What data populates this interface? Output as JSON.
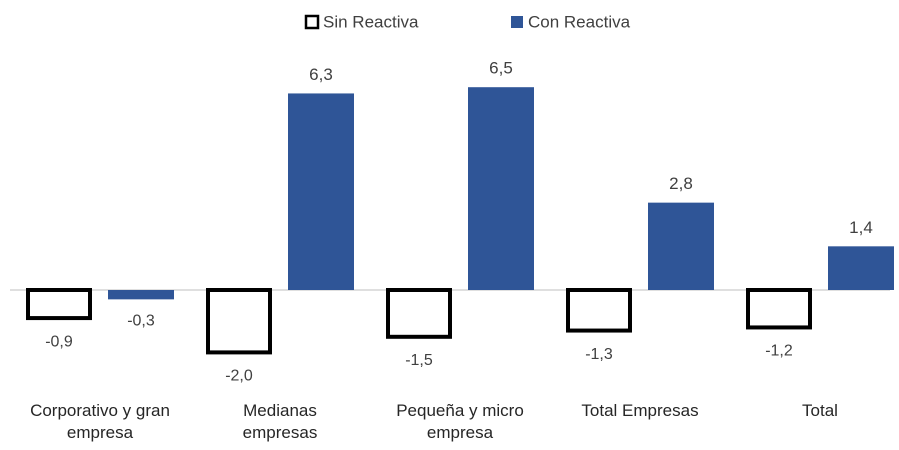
{
  "chart_data": {
    "type": "bar",
    "categories": [
      "Corporativo y gran\nempresa",
      "Medianas\nempresas",
      "Pequeña y micro\nempresa",
      "Total Empresas",
      "Total"
    ],
    "series": [
      {
        "name": "Sin Reactiva",
        "color": "#ffffff",
        "values": [
          -0.9,
          -2.0,
          -1.5,
          -1.3,
          -1.2
        ],
        "value_labels": [
          "-0,9",
          "-2,0",
          "-1,5",
          "-1,3",
          "-1,2"
        ]
      },
      {
        "name": "Con Reactiva",
        "color": "#2f5597",
        "values": [
          -0.3,
          6.3,
          6.5,
          2.8,
          1.4
        ],
        "value_labels": [
          "-0,3",
          "6,3",
          "6,5",
          "2,8",
          "1,4"
        ]
      }
    ],
    "ylim": [
      -2.5,
      7
    ],
    "legend": "top"
  }
}
